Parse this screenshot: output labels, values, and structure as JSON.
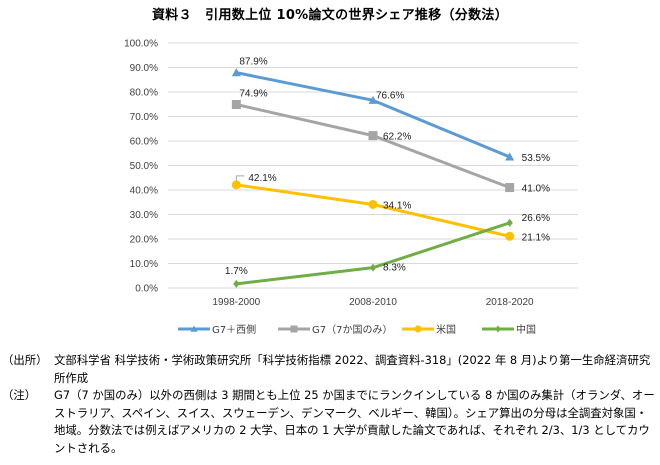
{
  "title": "資料３　引用数上位 10%論文の世界シェア推移（分数法）",
  "chart_data": {
    "type": "line",
    "title": "資料３　引用数上位 10%論文の世界シェア推移（分数法）",
    "xlabel": "",
    "ylabel": "",
    "categories": [
      "1998-2000",
      "2008-2010",
      "2018-2020"
    ],
    "ylim": [
      0,
      100
    ],
    "y_ticks": [
      0,
      10,
      20,
      30,
      40,
      50,
      60,
      70,
      80,
      90,
      100
    ],
    "y_tick_labels": [
      "0.0%",
      "10.0%",
      "20.0%",
      "30.0%",
      "40.0%",
      "50.0%",
      "60.0%",
      "70.0%",
      "80.0%",
      "90.0%",
      "100.0%"
    ],
    "grid": true,
    "legend_position": "bottom",
    "series": [
      {
        "name": "G7＋西側",
        "values": [
          87.9,
          76.6,
          53.5
        ],
        "labels": [
          "87.9%",
          "76.6%",
          "53.5%"
        ],
        "color": "#5B9BD5",
        "marker": "triangle"
      },
      {
        "name": "G7（7か国のみ）",
        "values": [
          74.9,
          62.2,
          41.0
        ],
        "labels": [
          "74.9%",
          "62.2%",
          "41.0%"
        ],
        "color": "#A5A5A5",
        "marker": "square"
      },
      {
        "name": "米国",
        "values": [
          42.1,
          34.1,
          21.1
        ],
        "labels": [
          "42.1%",
          "34.1%",
          "21.1%"
        ],
        "color": "#FFC000",
        "marker": "circle"
      },
      {
        "name": "中国",
        "values": [
          1.7,
          8.3,
          26.6
        ],
        "labels": [
          "1.7%",
          "8.3%",
          "26.6%"
        ],
        "color": "#70AD47",
        "marker": "diamond"
      }
    ]
  },
  "notes": {
    "source_lead": "（出所）",
    "source_text": "文部科学省 科学技術・学術政策研究所「科学技術指標 2022、調査資料-318」(2022 年 8 月)より第一生命経済研究所作成",
    "note_lead": "（注）",
    "note_text": "G7（7 か国のみ）以外の西側は 3 期間とも上位 25 か国までにランクインしている 8 か国のみ集計（オランダ、オーストラリア、スペイン、スイス、スウェーデン、デンマーク、ベルギー、韓国）。シェア算出の分母は全調査対象国・地域。分数法では例えばアメリカの 2 大学、日本の 1 大学が貢献した論文であれば、それぞれ 2/3、1/3 としてカウントされる。"
  }
}
